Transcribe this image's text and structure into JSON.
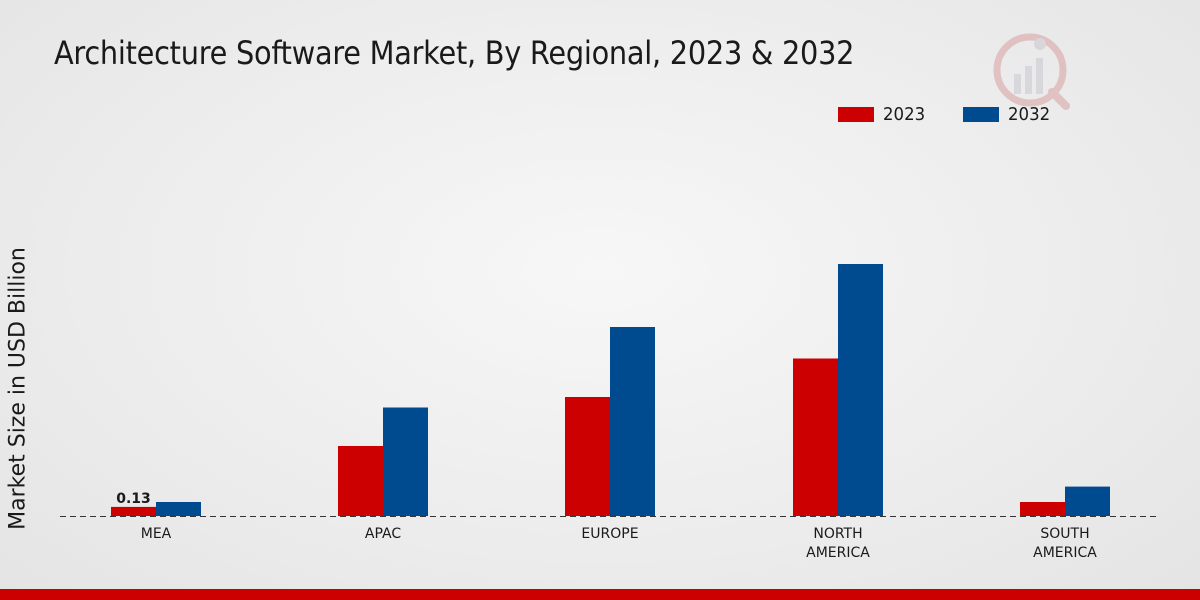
{
  "chart_data": {
    "type": "bar",
    "title": "Architecture Software Market, By Regional, 2023 & 2032",
    "ylabel": "Market Size in USD Billion",
    "xlabel": "",
    "categories": [
      "MEA",
      "APAC",
      "EUROPE",
      "NORTH AMERICA",
      "SOUTH AMERICA"
    ],
    "category_lines": [
      [
        "MEA"
      ],
      [
        "APAC"
      ],
      [
        "EUROPE"
      ],
      [
        "NORTH",
        "AMERICA"
      ],
      [
        "SOUTH",
        "AMERICA"
      ]
    ],
    "series": [
      {
        "name": "2023",
        "color": "#cc0000",
        "values": [
          0.13,
          1.0,
          1.7,
          2.25,
          0.2
        ]
      },
      {
        "name": "2032",
        "color": "#004a8f",
        "values": [
          0.2,
          1.55,
          2.7,
          3.6,
          0.42
        ]
      }
    ],
    "data_labels": [
      {
        "series": 0,
        "index": 0,
        "text": "0.13"
      }
    ],
    "ylim": [
      0,
      5.0
    ],
    "grid": false,
    "legend_position": "top-right"
  }
}
